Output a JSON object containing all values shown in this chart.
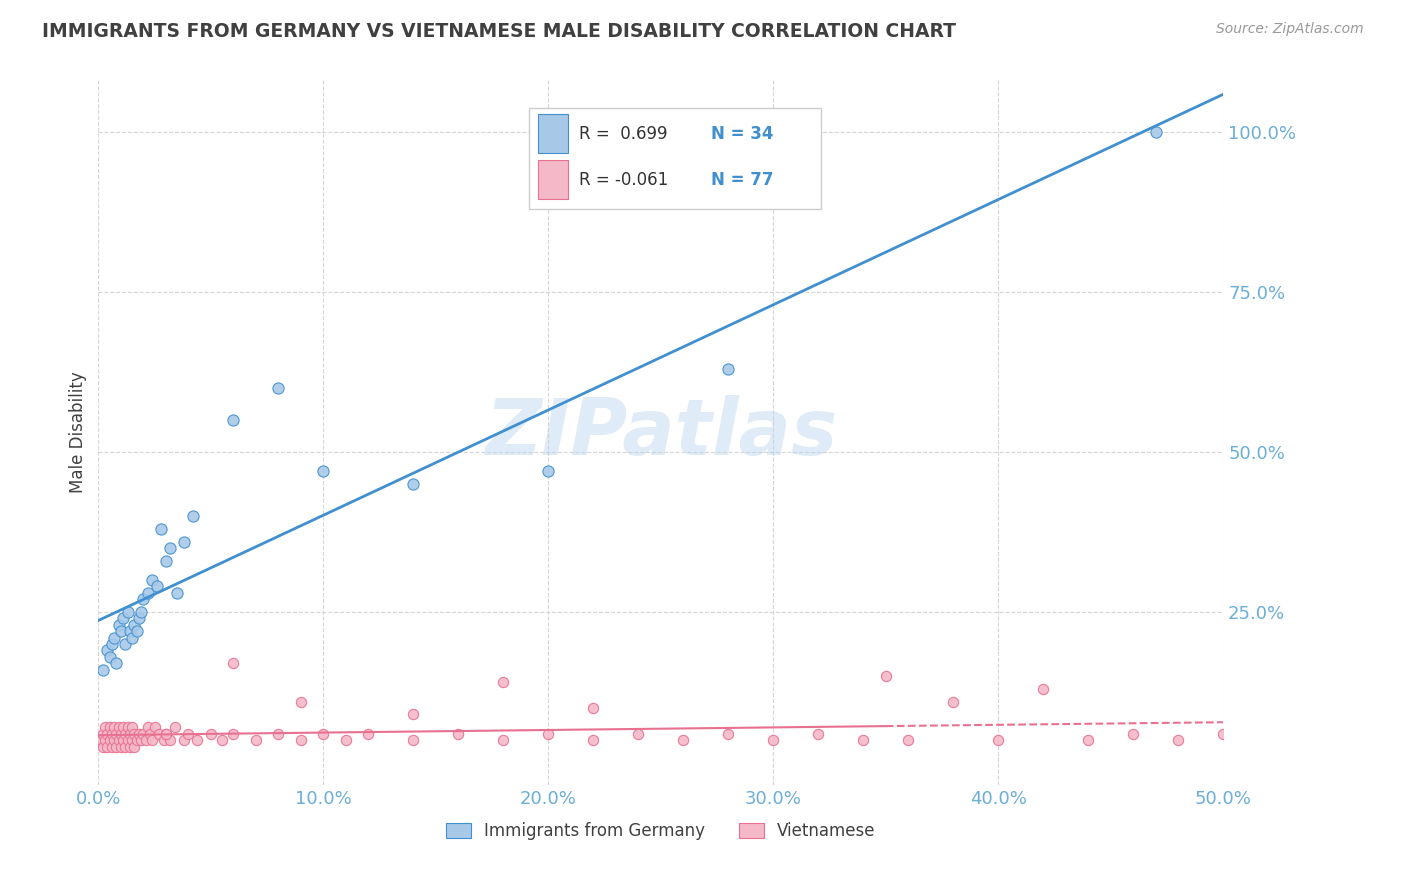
{
  "title": "IMMIGRANTS FROM GERMANY VS VIETNAMESE MALE DISABILITY CORRELATION CHART",
  "source": "Source: ZipAtlas.com",
  "ylabel": "Male Disability",
  "legend_labels": [
    "Immigrants from Germany",
    "Vietnamese"
  ],
  "legend_r_blue": "R =  0.699",
  "legend_n_blue": "N = 34",
  "legend_r_pink": "R = -0.061",
  "legend_n_pink": "N = 77",
  "blue_color": "#a8c8e8",
  "pink_color": "#f4b8c8",
  "blue_line_color": "#4090d0",
  "pink_line_color": "#e87090",
  "axis_color": "#6baed6",
  "title_color": "#404040",
  "watermark": "ZIPatlas",
  "xmin": 0.0,
  "xmax": 0.5,
  "ymin": -0.02,
  "ymax": 1.08,
  "yticks": [
    0.25,
    0.5,
    0.75,
    1.0
  ],
  "xticks": [
    0.0,
    0.1,
    0.2,
    0.3,
    0.4,
    0.5
  ],
  "blue_scatter_x": [
    0.002,
    0.004,
    0.005,
    0.006,
    0.007,
    0.008,
    0.009,
    0.01,
    0.011,
    0.012,
    0.013,
    0.014,
    0.015,
    0.016,
    0.017,
    0.018,
    0.019,
    0.02,
    0.022,
    0.024,
    0.026,
    0.028,
    0.03,
    0.032,
    0.035,
    0.038,
    0.042,
    0.06,
    0.08,
    0.1,
    0.14,
    0.2,
    0.28,
    0.47
  ],
  "blue_scatter_y": [
    0.16,
    0.19,
    0.18,
    0.2,
    0.21,
    0.17,
    0.23,
    0.22,
    0.24,
    0.2,
    0.25,
    0.22,
    0.21,
    0.23,
    0.22,
    0.24,
    0.25,
    0.27,
    0.28,
    0.3,
    0.29,
    0.38,
    0.33,
    0.35,
    0.28,
    0.36,
    0.4,
    0.55,
    0.6,
    0.47,
    0.45,
    0.47,
    0.63,
    1.0
  ],
  "pink_scatter_x": [
    0.001,
    0.002,
    0.002,
    0.003,
    0.003,
    0.004,
    0.004,
    0.005,
    0.005,
    0.006,
    0.006,
    0.007,
    0.007,
    0.008,
    0.008,
    0.009,
    0.009,
    0.01,
    0.01,
    0.011,
    0.011,
    0.012,
    0.012,
    0.013,
    0.013,
    0.014,
    0.014,
    0.015,
    0.015,
    0.016,
    0.016,
    0.017,
    0.018,
    0.019,
    0.02,
    0.021,
    0.022,
    0.023,
    0.024,
    0.025,
    0.027,
    0.029,
    0.03,
    0.032,
    0.034,
    0.038,
    0.04,
    0.044,
    0.05,
    0.055,
    0.06,
    0.07,
    0.08,
    0.09,
    0.1,
    0.11,
    0.12,
    0.14,
    0.16,
    0.18,
    0.2,
    0.22,
    0.24,
    0.26,
    0.28,
    0.3,
    0.32,
    0.34,
    0.35,
    0.36,
    0.38,
    0.4,
    0.42,
    0.44,
    0.46,
    0.48,
    0.5
  ],
  "pink_scatter_y": [
    0.05,
    0.04,
    0.06,
    0.05,
    0.07,
    0.04,
    0.06,
    0.05,
    0.07,
    0.04,
    0.06,
    0.05,
    0.07,
    0.04,
    0.06,
    0.05,
    0.07,
    0.04,
    0.06,
    0.05,
    0.07,
    0.04,
    0.06,
    0.05,
    0.07,
    0.04,
    0.06,
    0.05,
    0.07,
    0.04,
    0.06,
    0.05,
    0.06,
    0.05,
    0.06,
    0.05,
    0.07,
    0.06,
    0.05,
    0.07,
    0.06,
    0.05,
    0.06,
    0.05,
    0.07,
    0.05,
    0.06,
    0.05,
    0.06,
    0.05,
    0.06,
    0.05,
    0.06,
    0.05,
    0.06,
    0.05,
    0.06,
    0.05,
    0.06,
    0.05,
    0.06,
    0.05,
    0.06,
    0.05,
    0.06,
    0.05,
    0.06,
    0.05,
    0.15,
    0.05,
    0.11,
    0.05,
    0.13,
    0.05,
    0.06,
    0.05,
    0.06
  ],
  "pink_extra_x": [
    0.03,
    0.06,
    0.09,
    0.14,
    0.18,
    0.22
  ],
  "pink_extra_y": [
    0.06,
    0.17,
    0.11,
    0.09,
    0.14,
    0.1
  ]
}
